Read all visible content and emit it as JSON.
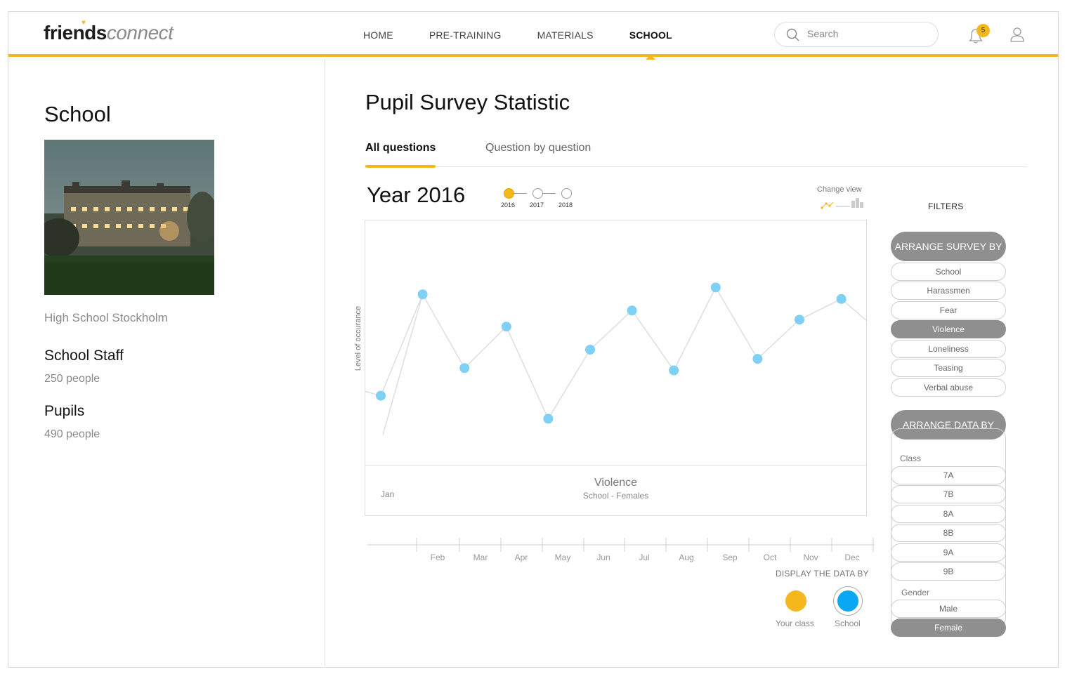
{
  "header": {
    "logo_bold": "friends",
    "logo_light": "connect",
    "nav": [
      "HOME",
      "PRE-TRAINING",
      "MATERIALS",
      "SCHOOL"
    ],
    "active_nav": "SCHOOL",
    "search_placeholder": "Search",
    "notification_count": "5",
    "accent_color": "#f5b81c"
  },
  "school": {
    "title": "School",
    "name": "High School Stockholm",
    "staff_label": "School Staff",
    "staff_value": "250 people",
    "pupils_label": "Pupils",
    "pupils_value": "490 people"
  },
  "main": {
    "title": "Pupil Survey Statistic",
    "tabs": [
      "All questions",
      "Question by question"
    ],
    "year_title": "Year 2016",
    "years": [
      "2016",
      "2017",
      "2018"
    ],
    "change_view": "Change view",
    "display_by": "DISPLAY THE DATA BY",
    "display_options": [
      "Your class",
      "School"
    ]
  },
  "chart_data": {
    "type": "line",
    "title": "Violence",
    "subtitle": "School - Females",
    "ylabel": "Level of occurance",
    "categories": [
      "Jan",
      "Feb",
      "Mar",
      "Apr",
      "May",
      "Jun",
      "Jul",
      "Aug",
      "Sep",
      "Oct",
      "Nov",
      "Dec"
    ],
    "series": [
      {
        "values": [
          30,
          74,
          42,
          60,
          20,
          50,
          67,
          41,
          77,
          46,
          63,
          72
        ],
        "color": "#7fd0f5"
      }
    ],
    "ylim": [
      0,
      100
    ],
    "grid": false
  },
  "filters": {
    "title": "FILTERS",
    "survey_head": "ARRANGE SURVEY BY",
    "survey_options": [
      "School",
      "Harassmen",
      "Fear",
      "Violence",
      "Loneliness",
      "Teasing",
      "Verbal abuse"
    ],
    "survey_selected": "Violence",
    "data_head": "ARRANGE DATA BY",
    "class_label": "Class",
    "classes": [
      "7A",
      "7B",
      "8A",
      "8B",
      "9A",
      "9B"
    ],
    "gender_label": "Gender",
    "genders": [
      "Male",
      "Female"
    ],
    "gender_selected": "Female"
  }
}
